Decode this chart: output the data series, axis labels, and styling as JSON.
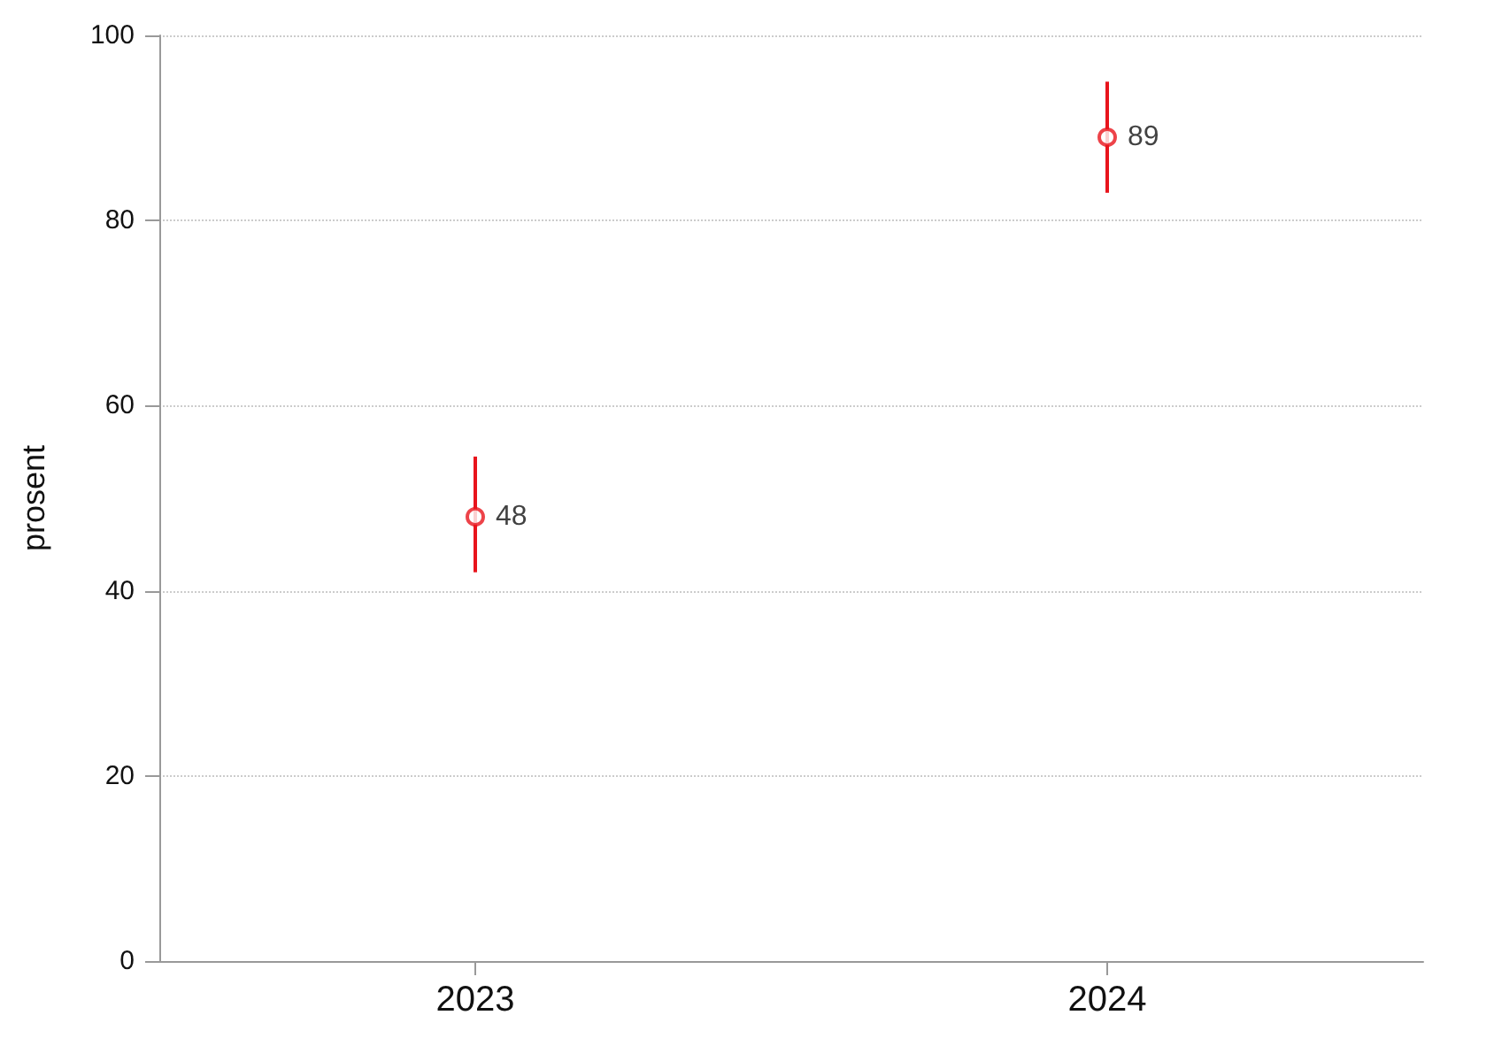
{
  "chart_data": {
    "type": "scatter",
    "ylabel": "prosent",
    "categories": [
      "2023",
      "2024"
    ],
    "series": [
      {
        "color": "#e8141c",
        "values": [
          48,
          89
        ],
        "errors": [
          [
            42,
            54.5
          ],
          [
            83,
            95
          ]
        ]
      }
    ],
    "ylim": [
      0,
      100
    ],
    "yticks": [
      0,
      20,
      40,
      60,
      80,
      100
    ],
    "grid": "y",
    "marker": "circle",
    "data_labels": true
  }
}
